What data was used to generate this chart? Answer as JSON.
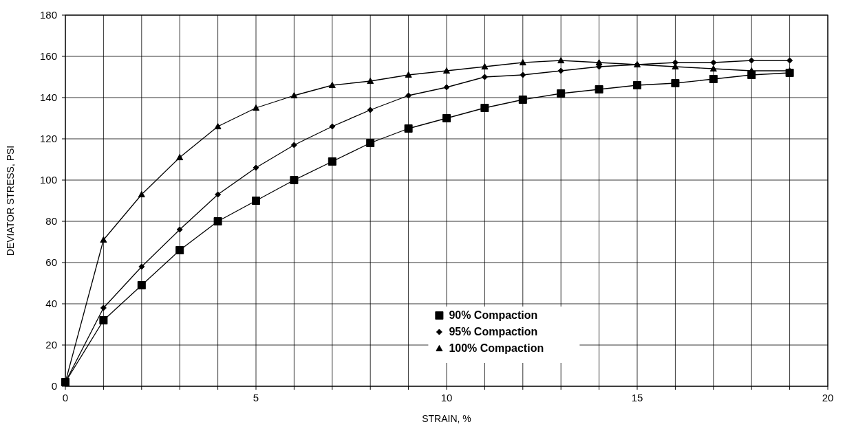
{
  "chart_data": {
    "type": "line",
    "xlabel": "STRAIN, %",
    "ylabel": "DEVIATOR STRESS, PSI",
    "x": [
      0,
      1,
      2,
      3,
      4,
      5,
      6,
      7,
      8,
      9,
      10,
      11,
      12,
      13,
      14,
      15,
      16,
      17,
      18,
      19
    ],
    "series": [
      {
        "name": "90% Compaction",
        "color": "#000000",
        "marker": "square",
        "values": [
          2,
          32,
          49,
          66,
          80,
          90,
          100,
          109,
          118,
          125,
          130,
          135,
          139,
          142,
          144,
          146,
          147,
          149,
          151,
          152
        ]
      },
      {
        "name": "95% Compaction",
        "color": "#000000",
        "marker": "diamond",
        "values": [
          2,
          38,
          58,
          76,
          93,
          106,
          117,
          126,
          134,
          141,
          145,
          150,
          151,
          153,
          155,
          156,
          157,
          157,
          158,
          158
        ]
      },
      {
        "name": "100% Compaction",
        "color": "#000000",
        "marker": "triangle",
        "values": [
          2,
          71,
          93,
          111,
          126,
          135,
          141,
          146,
          148,
          151,
          153,
          155,
          157,
          158,
          157,
          156,
          155,
          154,
          153,
          153
        ]
      }
    ],
    "xlim": [
      0,
      20
    ],
    "xticks": [
      0,
      {
        "value": 1,
        "label": null
      },
      {
        "value": 2,
        "label": null
      },
      {
        "value": 3,
        "label": null
      },
      {
        "value": 4,
        "label": null
      },
      5,
      {
        "value": 6,
        "label": null
      },
      {
        "value": 7,
        "label": null
      },
      {
        "value": 8,
        "label": null
      },
      {
        "value": 9,
        "label": null
      },
      10,
      {
        "value": 11,
        "label": null
      },
      {
        "value": 12,
        "label": null
      },
      {
        "value": 13,
        "label": null
      },
      {
        "value": 14,
        "label": null
      },
      15,
      {
        "value": 16,
        "label": null
      },
      {
        "value": 17,
        "label": null
      },
      {
        "value": 18,
        "label": null
      },
      {
        "value": 19,
        "label": null
      },
      20
    ],
    "ylim": [
      0,
      180
    ],
    "yticks": [
      0,
      20,
      40,
      60,
      80,
      100,
      120,
      140,
      160,
      180
    ],
    "grid": true,
    "legend": "bottom",
    "line_style": "solid"
  }
}
